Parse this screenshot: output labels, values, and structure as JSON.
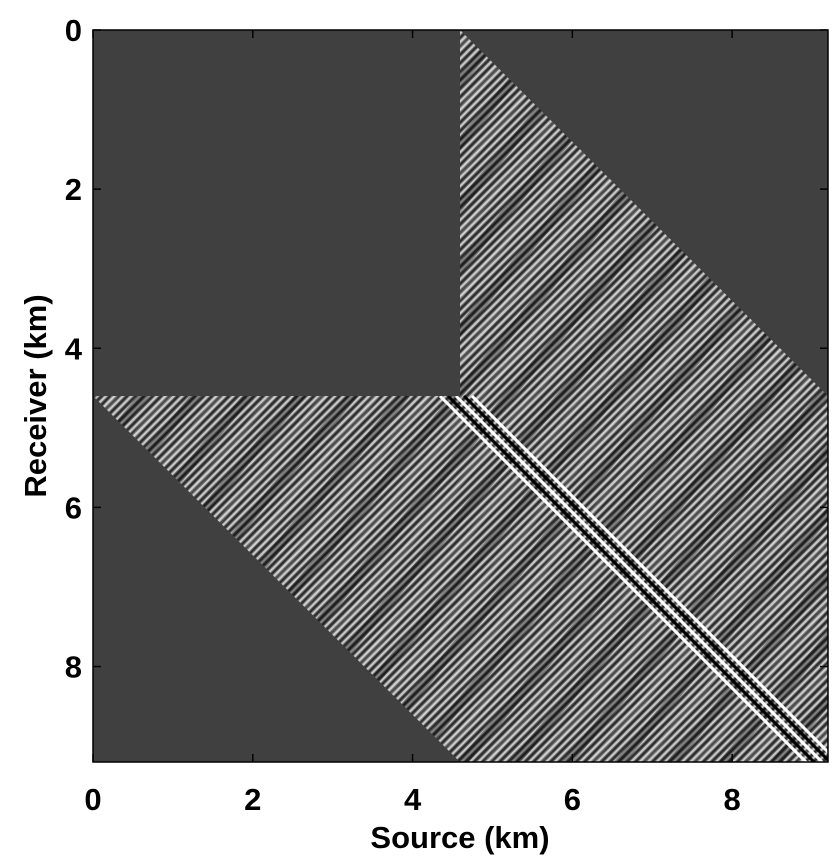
{
  "chart_data": {
    "type": "image",
    "xlabel": "Source (km)",
    "ylabel": "Receiver (km)",
    "xlim": [
      0,
      9.2
    ],
    "ylim": [
      9.2,
      0
    ],
    "xticks": [
      0,
      2,
      4,
      6,
      8
    ],
    "yticks": [
      0,
      2,
      4,
      6,
      8
    ]
  }
}
